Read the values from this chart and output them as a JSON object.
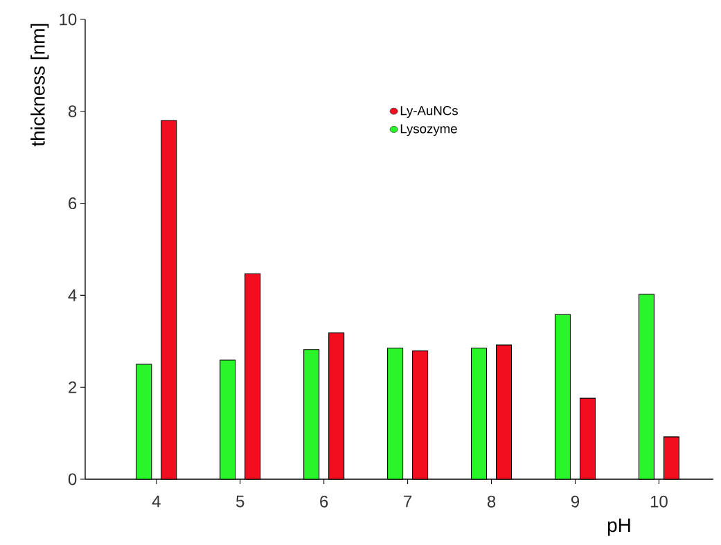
{
  "chart_data": {
    "type": "bar",
    "xlabel": "pH",
    "ylabel": "thickness [nm]",
    "categories": [
      "4",
      "5",
      "6",
      "7",
      "8",
      "9",
      "10"
    ],
    "series": [
      {
        "name": "Ly-AuNCs",
        "color": "#f20e1e",
        "values": [
          7.8,
          4.47,
          3.18,
          2.79,
          2.92,
          1.76,
          0.92
        ]
      },
      {
        "name": "Lysozyme",
        "color": "#2af52a",
        "values": [
          2.5,
          2.59,
          2.82,
          2.85,
          2.85,
          3.58,
          4.02
        ]
      }
    ],
    "ylim": [
      0,
      10
    ],
    "yticks": [
      0,
      2,
      4,
      6,
      8,
      10
    ],
    "legend": "top",
    "grid": false
  }
}
